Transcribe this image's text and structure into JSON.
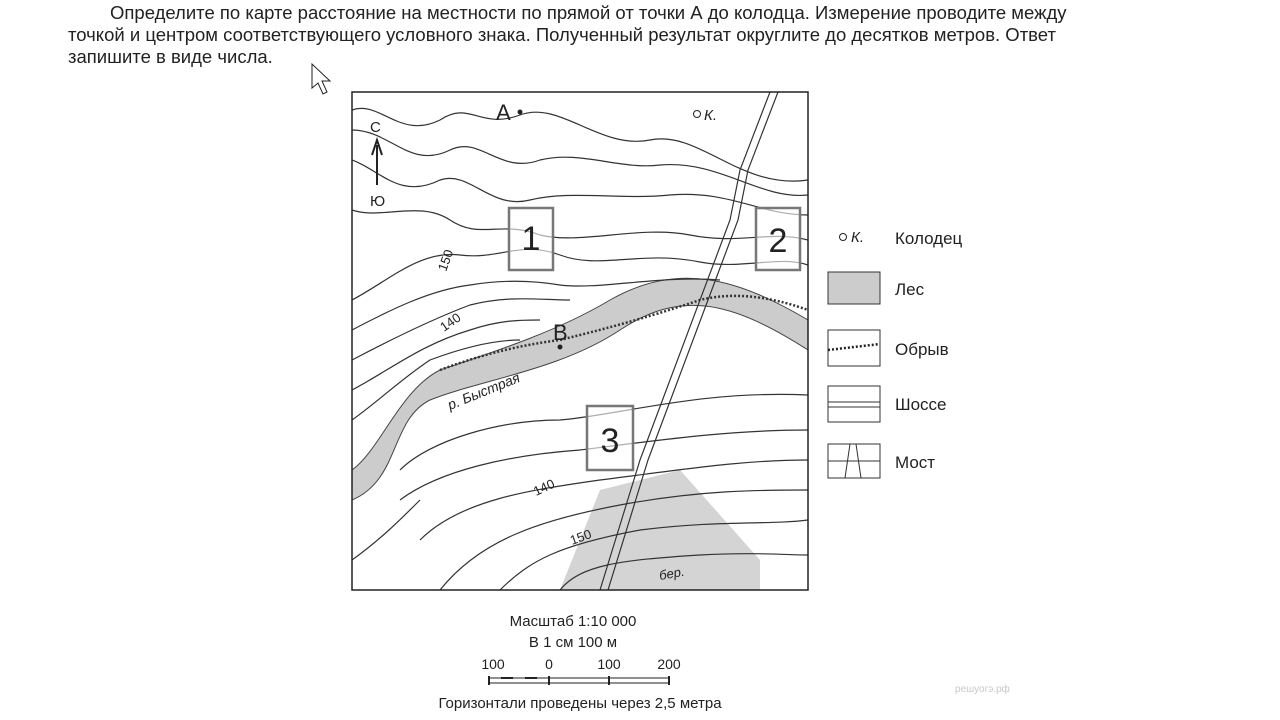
{
  "question": {
    "lines": [
      "Определите по карте расстояние на местности по прямой от точки А до колодца. Измерение проводите между",
      "точкой и центром соответствующего условного знака. Полученный результат округлите до десятков метров. Ответ",
      "запишите в виде числа."
    ]
  },
  "map": {
    "point_a": "А",
    "point_b": "В",
    "well_label": "К.",
    "north": "С",
    "south": "Ю",
    "boxes": [
      "1",
      "2",
      "3"
    ],
    "contours": [
      "150",
      "140",
      "140",
      "150"
    ],
    "river": "р. Быстрая",
    "forest_label": "бер."
  },
  "legend": {
    "well_symbol": "К.",
    "items": [
      "Колодец",
      "Лес",
      "Обрыв",
      "Шоссе",
      "Мост"
    ]
  },
  "scale": {
    "title": "Масштаб 1:10 000",
    "subtitle": "В 1 см 100 м",
    "ticks": [
      "100",
      "0",
      "100",
      "200"
    ],
    "note": "Горизонтали проведены через 2,5 метра"
  },
  "watermark": "решуогэ.рф"
}
